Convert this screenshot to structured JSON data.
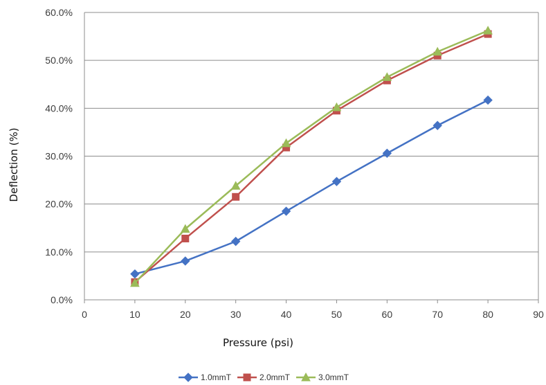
{
  "chart_data": {
    "type": "line",
    "title": "",
    "xlabel": "Pressure (psi)",
    "ylabel": "Deflection (%)",
    "xlim": [
      0,
      90
    ],
    "ylim": [
      0,
      60
    ],
    "x_ticks": [
      "0",
      "10",
      "20",
      "30",
      "40",
      "50",
      "60",
      "70",
      "80",
      "90"
    ],
    "y_ticks": [
      "0.0%",
      "10.0%",
      "20.0%",
      "30.0%",
      "40.0%",
      "50.0%",
      "60.0%"
    ],
    "grid": "horizontal",
    "legend_position": "bottom",
    "x": [
      10,
      20,
      30,
      40,
      50,
      60,
      70,
      80
    ],
    "series": [
      {
        "name": "1.0mmT",
        "color": "#4472c4",
        "marker": "diamond",
        "values": [
          5.4,
          8.1,
          12.2,
          18.5,
          24.7,
          30.6,
          36.4,
          41.7
        ]
      },
      {
        "name": "2.0mmT",
        "color": "#c0504d",
        "marker": "square",
        "values": [
          3.7,
          12.8,
          21.5,
          31.8,
          39.5,
          45.8,
          51.0,
          55.5
        ]
      },
      {
        "name": "3.0mmT",
        "color": "#9bbb59",
        "marker": "triangle",
        "values": [
          3.5,
          14.8,
          23.8,
          32.7,
          40.2,
          46.5,
          51.8,
          56.2
        ]
      }
    ]
  }
}
